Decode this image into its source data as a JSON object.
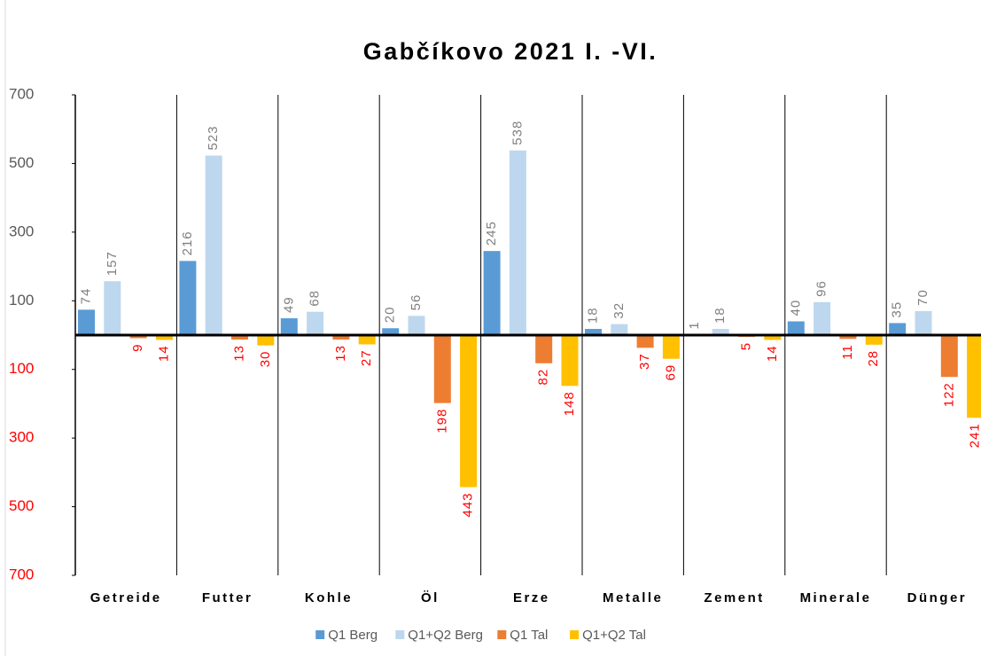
{
  "chart_data": {
    "type": "bar",
    "title": "Gabčíkovo  2021 I. -VI.",
    "categories": [
      "Getreide",
      "Futter",
      "Kohle",
      "Öl",
      "Erze",
      "Metalle",
      "Zement",
      "Minerale",
      "Dünger"
    ],
    "series": [
      {
        "name": "Q1 Berg",
        "color": "#5b9bd5",
        "values": [
          74,
          216,
          49,
          20,
          245,
          18,
          1,
          40,
          35
        ]
      },
      {
        "name": "Q1+Q2 Berg",
        "color": "#bdd7ee",
        "values": [
          157,
          523,
          68,
          56,
          538,
          32,
          18,
          96,
          70
        ]
      },
      {
        "name": "Q1 Tal",
        "color": "#ed7d31",
        "values": [
          -9,
          -13,
          -13,
          -198,
          -82,
          -37,
          -5,
          -11,
          -122
        ],
        "value_labels": [
          "9",
          "13",
          "13",
          "198",
          "82",
          "37",
          "5",
          "11",
          "122"
        ]
      },
      {
        "name": "Q1+Q2 Tal",
        "color": "#ffc000",
        "values": [
          -14,
          -30,
          -27,
          -443,
          -148,
          -69,
          -14,
          -28,
          -241
        ],
        "value_labels": [
          "14",
          "30",
          "27",
          "443",
          "148",
          "69",
          "14",
          "28",
          "241"
        ]
      }
    ],
    "ylim": [
      -700,
      700
    ],
    "yticks": [
      700,
      500,
      300,
      100,
      {
        "value": -100,
        "label": "100"
      },
      {
        "value": -300,
        "label": "300"
      },
      {
        "value": -500,
        "label": "500"
      },
      {
        "value": -700,
        "label": "700"
      }
    ],
    "legend": "bottom"
  }
}
